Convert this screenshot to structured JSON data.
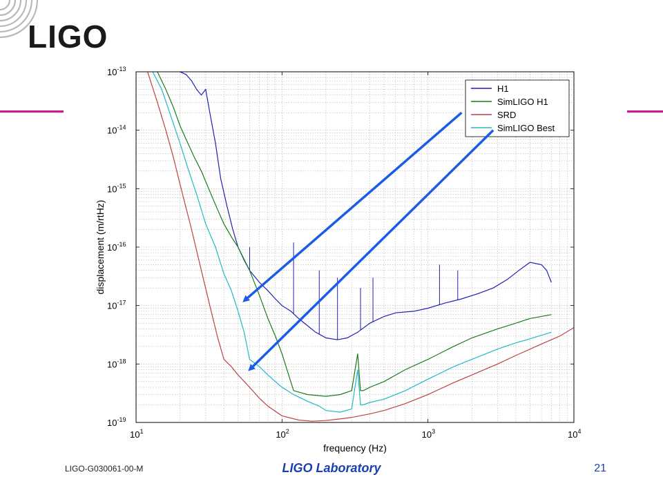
{
  "slide": {
    "logo_text": "LIGO",
    "footer_id": "LIGO-G030061-00-M",
    "footer_center": "LIGO Laboratory",
    "page_number": "21",
    "accent_color": "#d4148c",
    "footer_color": "#1a3fb0",
    "arrow_color": "#1a5ce6"
  },
  "chart_data": {
    "type": "line",
    "title": "",
    "xlabel": "frequency (Hz)",
    "ylabel": "displacement (m/rtHz)",
    "x_scale": "log",
    "y_scale": "log",
    "xlim": [
      10,
      10000
    ],
    "ylim": [
      1e-19,
      1e-13
    ],
    "x_ticks": [
      {
        "base": "10",
        "exp": "1"
      },
      {
        "base": "10",
        "exp": "2"
      },
      {
        "base": "10",
        "exp": "3"
      },
      {
        "base": "10",
        "exp": "4"
      }
    ],
    "y_ticks": [
      {
        "base": "10",
        "exp": "-13"
      },
      {
        "base": "10",
        "exp": "-14"
      },
      {
        "base": "10",
        "exp": "-15"
      },
      {
        "base": "10",
        "exp": "-16"
      },
      {
        "base": "10",
        "exp": "-17"
      },
      {
        "base": "10",
        "exp": "-18"
      },
      {
        "base": "10",
        "exp": "-19"
      }
    ],
    "grid": true,
    "legend_position": "top-right",
    "series": [
      {
        "name": "H1",
        "color": "#1f1fb4",
        "x": [
          19,
          20,
          22,
          24,
          26,
          28,
          30,
          32,
          35,
          38,
          42,
          46,
          50,
          55,
          60,
          70,
          80,
          90,
          100,
          115,
          130,
          150,
          170,
          200,
          240,
          280,
          330,
          400,
          500,
          600,
          800,
          1000,
          1300,
          1700,
          2200,
          2800,
          3500,
          4200,
          5000,
          6000,
          6500,
          7000
        ],
        "y": [
          1.2e-13,
          1e-13,
          9e-14,
          7e-14,
          5e-14,
          4e-14,
          5e-14,
          2e-14,
          6e-15,
          1.5e-15,
          5e-16,
          2e-16,
          1e-16,
          6e-17,
          4e-17,
          2.5e-17,
          1.8e-17,
          1.3e-17,
          1e-17,
          8e-18,
          6e-18,
          4.5e-18,
          3.5e-18,
          2.8e-18,
          2.6e-18,
          2.8e-18,
          3.5e-18,
          5e-18,
          6.5e-18,
          7.5e-18,
          8e-18,
          9e-18,
          1.1e-17,
          1.3e-17,
          1.6e-17,
          2e-17,
          2.8e-17,
          4e-17,
          5.5e-17,
          5e-17,
          4e-17,
          2.5e-17
        ],
        "spikes": [
          {
            "x": 60,
            "y": 1e-16
          },
          {
            "x": 120,
            "y": 1.2e-16
          },
          {
            "x": 180,
            "y": 4e-17
          },
          {
            "x": 240,
            "y": 3e-17
          },
          {
            "x": 345,
            "y": 2e-17
          },
          {
            "x": 420,
            "y": 3e-17
          },
          {
            "x": 1200,
            "y": 5e-17
          },
          {
            "x": 1600,
            "y": 4e-17
          }
        ]
      },
      {
        "name": "SimLIGO H1",
        "color": "#1a7a1a",
        "x": [
          14,
          16,
          18,
          20,
          22,
          25,
          28,
          32,
          36,
          40,
          45,
          50,
          60,
          70,
          80,
          90,
          100,
          120,
          150,
          200,
          250,
          300,
          330,
          345,
          360,
          400,
          500,
          700,
          1000,
          1500,
          2000,
          3000,
          4000,
          5000,
          7000
        ],
        "y": [
          1e-13,
          5e-14,
          2.5e-14,
          1.2e-14,
          7e-15,
          3.5e-15,
          2e-15,
          9e-16,
          4.5e-16,
          2.5e-16,
          1.5e-16,
          1e-16,
          4e-17,
          1.5e-17,
          6e-18,
          3e-18,
          1.5e-18,
          3.5e-19,
          3e-19,
          2.8e-19,
          3e-19,
          3.5e-19,
          1.5e-18,
          3.5e-19,
          3.5e-19,
          4e-19,
          5e-19,
          8e-19,
          1.2e-18,
          2e-18,
          2.8e-18,
          4e-18,
          5e-18,
          6e-18,
          7e-18
        ]
      },
      {
        "name": "SRD",
        "color": "#c04040",
        "x": [
          12,
          14,
          16,
          18,
          20,
          24,
          28,
          32,
          36,
          40,
          45,
          50,
          60,
          70,
          80,
          100,
          130,
          160,
          200,
          250,
          300,
          400,
          500,
          700,
          1000,
          1500,
          2000,
          3000,
          4000,
          6000,
          7000,
          8000,
          10000
        ],
        "y": [
          1e-13,
          3e-14,
          1e-14,
          3.5e-15,
          1.2e-15,
          2e-16,
          4e-17,
          1e-17,
          3e-18,
          1.2e-18,
          9e-19,
          6.5e-19,
          4e-19,
          2.6e-19,
          1.9e-19,
          1.3e-19,
          1.1e-19,
          1.05e-19,
          1.08e-19,
          1.15e-19,
          1.22e-19,
          1.4e-19,
          1.6e-19,
          2.1e-19,
          3e-19,
          4.8e-19,
          6.5e-19,
          1e-18,
          1.4e-18,
          2.2e-18,
          2.6e-18,
          3e-18,
          4.2e-18
        ]
      },
      {
        "name": "SimLIGO Best",
        "color": "#20b8c8",
        "x": [
          13,
          15,
          17,
          20,
          23,
          26,
          30,
          35,
          40,
          45,
          50,
          55,
          60,
          70,
          80,
          90,
          100,
          120,
          150,
          180,
          200,
          250,
          300,
          330,
          345,
          360,
          400,
          500,
          700,
          1000,
          1500,
          2000,
          3000,
          4000,
          5000,
          7000
        ],
        "y": [
          1e-13,
          5e-14,
          2e-14,
          6e-15,
          2e-15,
          8e-16,
          2.5e-16,
          1e-16,
          3.5e-17,
          1.8e-17,
          8e-18,
          3.5e-18,
          1.2e-18,
          9e-19,
          6.5e-19,
          5e-19,
          4e-19,
          3e-19,
          2.3e-19,
          1.9e-19,
          1.6e-19,
          1.5e-19,
          1.7e-19,
          8e-19,
          2e-19,
          2e-19,
          2.2e-19,
          2.5e-19,
          3.5e-19,
          5.5e-19,
          9e-19,
          1.2e-18,
          1.8e-18,
          2.3e-18,
          2.7e-18,
          3.5e-18
        ]
      }
    ],
    "arrows": [
      {
        "from": {
          "x": 1700,
          "y": 2e-14
        },
        "to": {
          "x": 55,
          "y": 1.2e-17
        }
      },
      {
        "from": {
          "x": 2800,
          "y": 1e-14
        },
        "to": {
          "x": 60,
          "y": 8e-19
        }
      }
    ]
  }
}
